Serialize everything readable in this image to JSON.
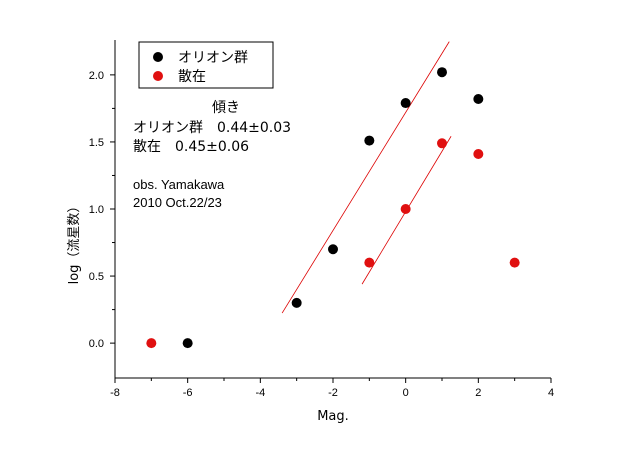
{
  "chart_data": {
    "type": "scatter",
    "xlabel": "Mag.",
    "ylabel": "log（流星数）",
    "xlim": [
      -8,
      4
    ],
    "ylim": [
      -0.26,
      2.26
    ],
    "x_ticks": [
      "-8",
      "-6",
      "-4",
      "-2",
      "0",
      "2",
      "4"
    ],
    "y_ticks": [
      "0.0",
      "0.5",
      "1.0",
      "1.5",
      "2.0"
    ],
    "grid": false,
    "legend_position": "top-left",
    "series": [
      {
        "name": "オリオン群",
        "color": "#000000",
        "points": [
          {
            "x": -6,
            "y": 0.0
          },
          {
            "x": -3,
            "y": 0.3
          },
          {
            "x": -2,
            "y": 0.7
          },
          {
            "x": -1,
            "y": 1.51
          },
          {
            "x": 0,
            "y": 1.79
          },
          {
            "x": 1,
            "y": 2.02
          },
          {
            "x": 2,
            "y": 1.82
          }
        ],
        "fit": {
          "slope": 0.44,
          "intercept": 1.72,
          "x_range": [
            -3.4,
            1.2
          ],
          "color": "#dd0000"
        }
      },
      {
        "name": "散在",
        "color": "#e01010",
        "points": [
          {
            "x": -7,
            "y": 0.0
          },
          {
            "x": -1,
            "y": 0.6
          },
          {
            "x": 0,
            "y": 1.0
          },
          {
            "x": 1,
            "y": 1.49
          },
          {
            "x": 2,
            "y": 1.41
          },
          {
            "x": 3,
            "y": 0.6
          }
        ],
        "fit": {
          "slope": 0.45,
          "intercept": 0.98,
          "x_range": [
            -1.2,
            1.25
          ],
          "color": "#dd0000"
        }
      }
    ],
    "annotations": {
      "slope_title": "傾き",
      "orion_slope": "オリオン群　0.44±0.03",
      "sporadic_slope": "散在　0.45±0.06",
      "observer": "obs. Yamakawa",
      "date": "2010 Oct.22/23"
    }
  }
}
